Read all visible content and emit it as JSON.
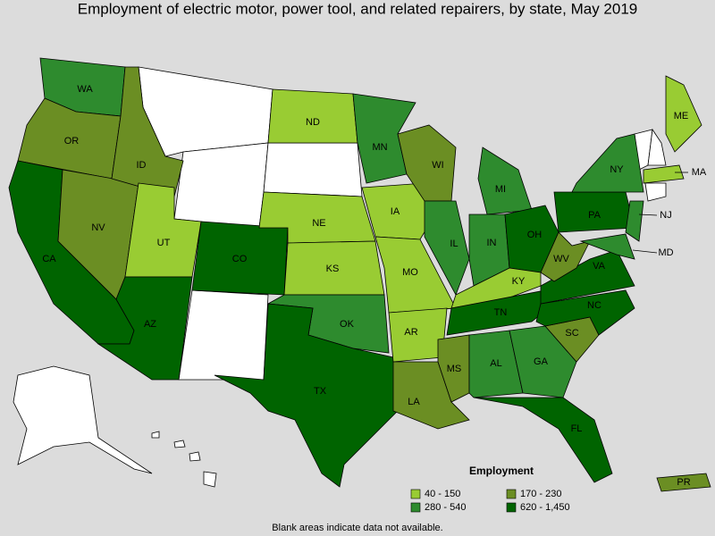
{
  "title": "Employment of electric motor, power tool, and related repairers, by state, May 2019",
  "legend": {
    "title": "Employment",
    "items": [
      {
        "label": "40 - 150",
        "color": "#99cc33"
      },
      {
        "label": "170 - 230",
        "color": "#6b8e23"
      },
      {
        "label": "280 - 540",
        "color": "#2e8b2e"
      },
      {
        "label": "620 - 1,450",
        "color": "#006400"
      }
    ]
  },
  "states": [
    {
      "label": "WA",
      "class": 2
    },
    {
      "label": "OR",
      "class": 1
    },
    {
      "label": "CA",
      "class": 3
    },
    {
      "label": "NV",
      "class": 1
    },
    {
      "label": "ID",
      "class": 1
    },
    {
      "label": "UT",
      "class": 0
    },
    {
      "label": "AZ",
      "class": 3
    },
    {
      "label": "CO",
      "class": 3
    },
    {
      "label": "ND",
      "class": 0
    },
    {
      "label": "NE",
      "class": 0
    },
    {
      "label": "KS",
      "class": 0
    },
    {
      "label": "OK",
      "class": 2
    },
    {
      "label": "TX",
      "class": 3
    },
    {
      "label": "MN",
      "class": 2
    },
    {
      "label": "IA",
      "class": 0
    },
    {
      "label": "MO",
      "class": 0
    },
    {
      "label": "AR",
      "class": 0
    },
    {
      "label": "LA",
      "class": 1
    },
    {
      "label": "WI",
      "class": 1
    },
    {
      "label": "IL",
      "class": 2
    },
    {
      "label": "MI",
      "class": 2
    },
    {
      "label": "IN",
      "class": 2
    },
    {
      "label": "OH",
      "class": 3
    },
    {
      "label": "KY",
      "class": 0
    },
    {
      "label": "TN",
      "class": 3
    },
    {
      "label": "MS",
      "class": 1
    },
    {
      "label": "AL",
      "class": 2
    },
    {
      "label": "GA",
      "class": 2
    },
    {
      "label": "FL",
      "class": 3
    },
    {
      "label": "SC",
      "class": 1
    },
    {
      "label": "NC",
      "class": 3
    },
    {
      "label": "VA",
      "class": 3
    },
    {
      "label": "WV",
      "class": 1
    },
    {
      "label": "PA",
      "class": 3
    },
    {
      "label": "NY",
      "class": 2
    },
    {
      "label": "ME",
      "class": 0
    },
    {
      "label": "MA",
      "class": 0
    },
    {
      "label": "NJ",
      "class": 2
    },
    {
      "label": "MD",
      "class": 2
    },
    {
      "label": "PR",
      "class": 1
    }
  ],
  "note": "Blank areas indicate data not available."
}
